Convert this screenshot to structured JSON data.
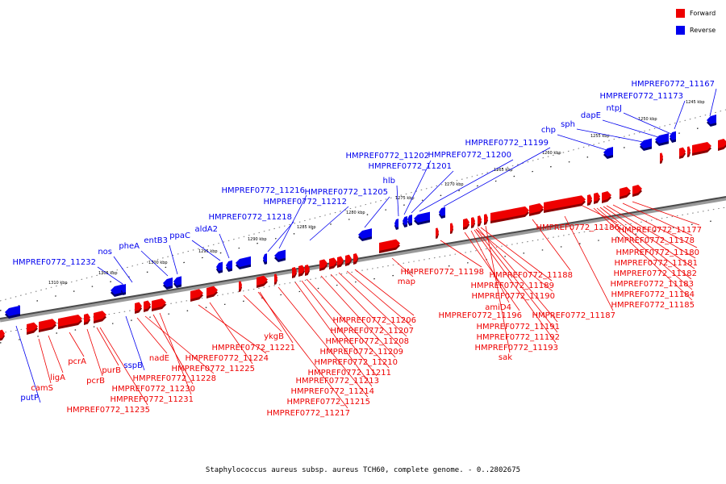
{
  "caption": "Staphylococcus aureus subsp. aureus TCH60, complete genome. - 0..2802675",
  "legend": [
    {
      "label": "Forward",
      "color": "#ee0000"
    },
    {
      "label": "Reverse",
      "color": "#0000ee"
    }
  ],
  "colors": {
    "forward": "#ee0000",
    "reverse": "#0000ee",
    "axis": "#555555"
  },
  "ticks": [
    "1310 kbp",
    "1305 kbp",
    "1300 kbp",
    "1295 kbp",
    "1290 kbp",
    "1285 kbp",
    "1280 kbp",
    "1275 kbp",
    "1270 kbp",
    "1265 kbp",
    "1260 kbp",
    "1255 kbp",
    "1250 kbp",
    "1245 kbp"
  ],
  "reverse_labels": [
    "HMPREF0772_11232",
    "nos",
    "pheA",
    "entB3",
    "ppaC",
    "aldA2",
    "HMPREF0772_11218",
    "HMPREF0772_11216",
    "HMPREF0772_11212",
    "HMPREF0772_11205",
    "hlb",
    "HMPREF0772_11202",
    "HMPREF0772_11201",
    "HMPREF0772_11200",
    "HMPREF0772_11199",
    "chp",
    "sph",
    "dapE",
    "ntpJ",
    "HMPREF0772_11173",
    "HMPREF0772_11167",
    "putP",
    "sspB"
  ],
  "forward_labels": [
    "camS",
    "ligA",
    "pcrA",
    "pcrB",
    "purB",
    "HMPREF0772_11235",
    "nadE",
    "HMPREF0772_11228",
    "HMPREF0772_11230",
    "HMPREF0772_11231",
    "HMPREF0772_11224",
    "HMPREF0772_11225",
    "ykgB",
    "HMPREF0772_11221",
    "HMPREF0772_11206",
    "HMPREF0772_11207",
    "HMPREF0772_11208",
    "HMPREF0772_11209",
    "HMPREF0772_11210",
    "HMPREF0772_11211",
    "HMPREF0772_11213",
    "HMPREF0772_11214",
    "HMPREF0772_11215",
    "HMPREF0772_11217",
    "map",
    "HMPREF0772_11198",
    "HMPREF0772_11188",
    "HMPREF0772_11189",
    "HMPREF0772_11190",
    "amiD4",
    "HMPREF0772_11196",
    "HMPREF0772_11191",
    "HMPREF0772_11192",
    "HMPREF0772_11193",
    "sak",
    "HMPREF0772_11187",
    "HMPREF0772_11186",
    "HMPREF0772_11177",
    "HMPREF0772_11178",
    "HMPREF0772_11180",
    "HMPREF0772_11181",
    "HMPREF0772_11182",
    "HMPREF0772_11183",
    "HMPREF0772_11184",
    "HMPREF0772_11185"
  ]
}
